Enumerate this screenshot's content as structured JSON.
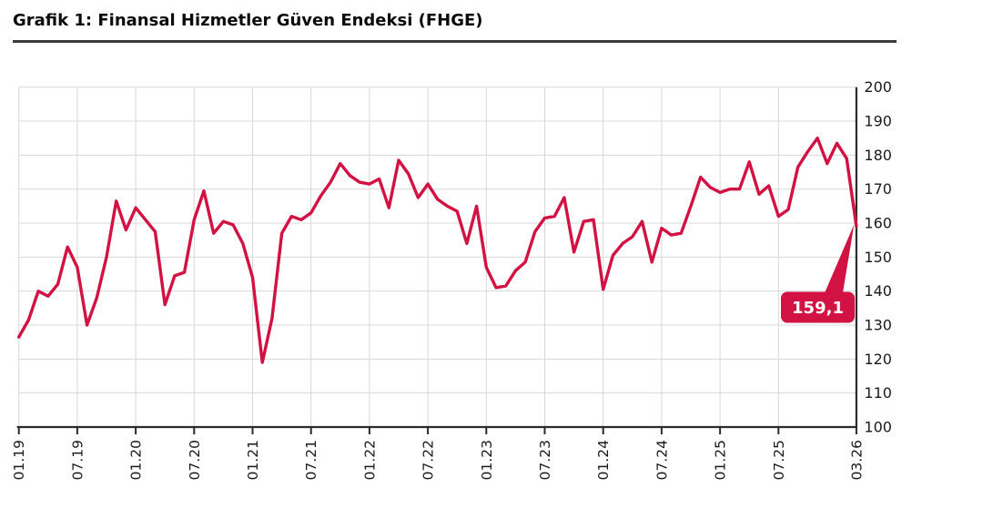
{
  "page": {
    "title": "Grafik 1: Finansal Hizmetler Güven Endeksi (FHGE)"
  },
  "chart_data": {
    "type": "line",
    "title": "Grafik 1: Finansal Hizmetler Güven Endeksi (FHGE)",
    "series_name": "FHGE",
    "x_start_month": "01.19",
    "x_end_month": "03.26",
    "x_tick_labels": [
      "01.19",
      "07.19",
      "01.20",
      "07.20",
      "01.21",
      "07.21",
      "01.22",
      "07.22",
      "01.23",
      "07.23",
      "01.24",
      "07.24",
      "01.25",
      "07.25",
      "03.26"
    ],
    "x_tick_month_index": [
      0,
      6,
      12,
      18,
      24,
      30,
      36,
      42,
      48,
      54,
      60,
      66,
      72,
      78,
      86
    ],
    "y_tick_labels": [
      "100",
      "110",
      "120",
      "130",
      "140",
      "150",
      "160",
      "170",
      "180",
      "190",
      "200"
    ],
    "y_ticks": [
      100,
      110,
      120,
      130,
      140,
      150,
      160,
      170,
      180,
      190,
      200
    ],
    "ylim": [
      100,
      200
    ],
    "grid": true,
    "legend_position": "none",
    "values": [
      126.5,
      131.5,
      140,
      138.5,
      142,
      153,
      147,
      130,
      138,
      150,
      166.5,
      158,
      164.5,
      161,
      157.5,
      136,
      144.5,
      145.5,
      161,
      169.5,
      157,
      160.5,
      159.5,
      154,
      144,
      119,
      132,
      157,
      162,
      161,
      163,
      168,
      172,
      177.5,
      174,
      172,
      171.5,
      173,
      164.5,
      178.5,
      174.5,
      167.5,
      171.5,
      167,
      165,
      163.5,
      154,
      165,
      147,
      141,
      141.5,
      146,
      148.5,
      157.5,
      161.5,
      162,
      167.5,
      151.5,
      160.5,
      161,
      140.5,
      150.5,
      154,
      156,
      160.5,
      148.5,
      158.5,
      156.5,
      157,
      165,
      173.5,
      170.5,
      169,
      170,
      170,
      178,
      168.5,
      171,
      162,
      164,
      176.5,
      181,
      185,
      177.5,
      183.5,
      179,
      159.1
    ],
    "annotation": {
      "text": "159,1",
      "value": 159.1,
      "month": "03.26"
    },
    "colors": {
      "line": "#d11243",
      "grid": "#d8d8d8",
      "axis": "#2b2b2b",
      "tick_text": "#1a1a1a",
      "annotation_bg": "#d11243",
      "annotation_text": "#ffffff"
    }
  }
}
